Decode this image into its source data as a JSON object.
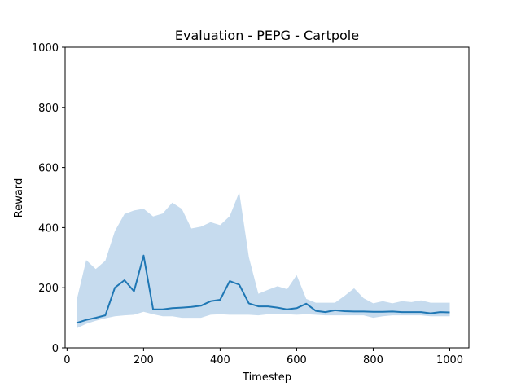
{
  "chart_data": {
    "type": "line",
    "title": "Evaluation - PEPG - Cartpole",
    "xlabel": "Timestep",
    "ylabel": "Reward",
    "xlim": [
      -5,
      1050
    ],
    "ylim": [
      0,
      1000
    ],
    "xticks": [
      0,
      200,
      400,
      600,
      800,
      1000
    ],
    "yticks": [
      0,
      200,
      400,
      600,
      800,
      1000
    ],
    "grid": false,
    "legend": "none",
    "colors": {
      "line": "#1f77b4",
      "band": "#c6dbee",
      "axis": "#000000"
    },
    "x": [
      25,
      50,
      75,
      100,
      125,
      150,
      175,
      200,
      225,
      250,
      275,
      300,
      325,
      350,
      375,
      400,
      425,
      450,
      475,
      500,
      525,
      550,
      575,
      600,
      625,
      650,
      675,
      700,
      725,
      750,
      775,
      800,
      825,
      850,
      875,
      900,
      925,
      950,
      975,
      1000
    ],
    "series": [
      {
        "values": [
          83,
          93,
          100,
          108,
          200,
          225,
          188,
          307,
          128,
          128,
          132,
          134,
          136,
          140,
          155,
          160,
          222,
          210,
          148,
          138,
          138,
          134,
          128,
          132,
          147,
          123,
          119,
          125,
          122,
          121,
          121,
          120,
          120,
          121,
          119,
          119,
          119,
          115,
          119,
          118
        ]
      }
    ],
    "band": {
      "lower": [
        65,
        80,
        90,
        98,
        105,
        108,
        110,
        120,
        112,
        105,
        105,
        100,
        100,
        100,
        110,
        112,
        110,
        110,
        110,
        108,
        112,
        112,
        112,
        110,
        112,
        110,
        108,
        108,
        108,
        108,
        108,
        100,
        105,
        108,
        108,
        108,
        108,
        105,
        105,
        105
      ],
      "upper": [
        158,
        292,
        262,
        290,
        388,
        445,
        457,
        463,
        437,
        447,
        483,
        462,
        397,
        403,
        418,
        408,
        438,
        518,
        302,
        180,
        193,
        205,
        195,
        242,
        163,
        150,
        150,
        150,
        173,
        198,
        165,
        148,
        155,
        148,
        155,
        152,
        158,
        150,
        150,
        150
      ]
    }
  }
}
